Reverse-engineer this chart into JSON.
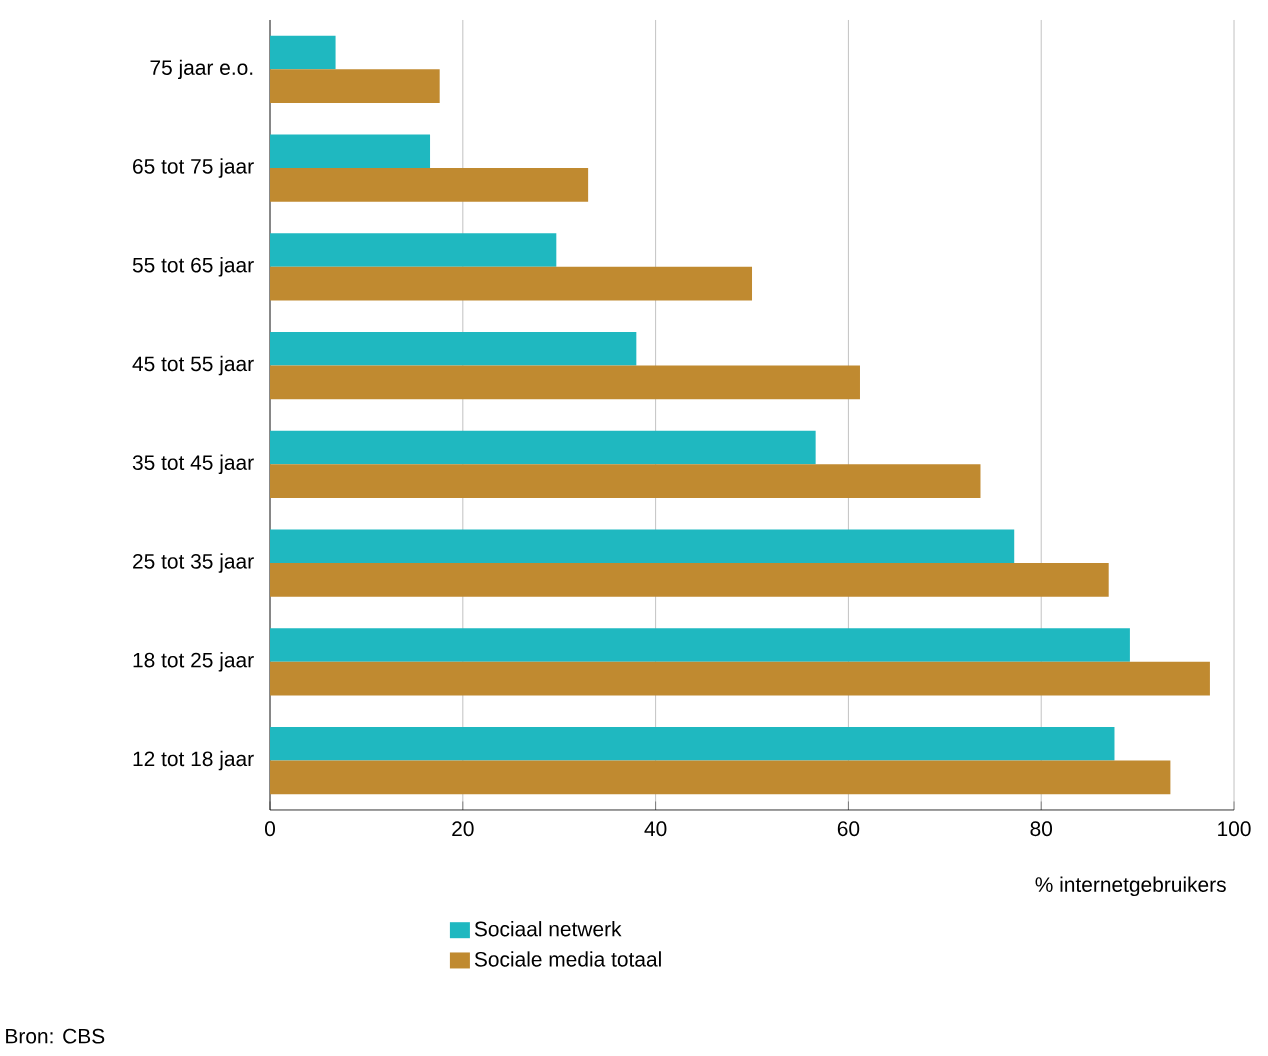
{
  "chart_data": {
    "type": "bar",
    "orientation": "horizontal",
    "xlabel": "% internetgebruikers",
    "categories": [
      "75 jaar e.o.",
      "65 tot 75 jaar",
      "55 tot 65 jaar",
      "45 tot 55 jaar",
      "35 tot 45 jaar",
      "25 tot 35 jaar",
      "18 tot 25 jaar",
      "12 tot 18 jaar"
    ],
    "series": [
      {
        "name": "Sociaal netwerk",
        "color": "#1fb8c0",
        "values": [
          6.8,
          16.6,
          29.7,
          38,
          56.6,
          77.2,
          89.2,
          87.6
        ]
      },
      {
        "name": "Sociale media totaal",
        "color": "#c08a30",
        "values": [
          17.6,
          33,
          50,
          61.2,
          73.7,
          87,
          97.5,
          93.4
        ]
      }
    ],
    "xlim": [
      0,
      100
    ],
    "xticks": [
      0,
      20,
      40,
      60,
      80,
      100
    ],
    "grid": "x",
    "legend": "bottom",
    "annotations": [
      "Bron: CBS"
    ]
  }
}
